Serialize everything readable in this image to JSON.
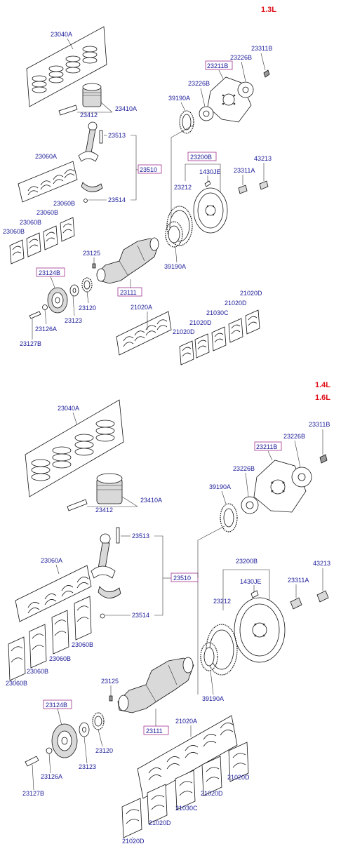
{
  "diagram": {
    "sections": [
      {
        "engine_labels": [
          "1.3L"
        ],
        "labels": {
          "rings": "23040A",
          "piston": "23410A",
          "pin": "23412",
          "rod": "23513",
          "rod_assy": "23510",
          "rod_nut": "23514",
          "rod_bearing_set": "23060A",
          "rod_bearing_b1": "23060B",
          "rod_bearing_b2": "23060B",
          "rod_bearing_b3": "23060B",
          "rod_bearing_b4": "23060B",
          "drive_plate": "23211B",
          "drive_bolt": "23311B",
          "adapter_plate": "23226B",
          "spacer": "23226B",
          "ring_gear_top": "39190A",
          "flywheel_assy": "23200B",
          "flywheel": "23212",
          "flywheel_pin": "1430JE",
          "flywheel_bolt_a": "23311A",
          "flywheel_bolt_b": "43213",
          "ring_gear_bottom": "39190A",
          "crank_key": "23125",
          "crankshaft": "23111",
          "damper": "23124B",
          "sprocket": "23120",
          "washer": "23123",
          "damper_bolt": "23127B",
          "hub": "23126A",
          "main_bearing_set": "21020A",
          "main_bearing_d1": "21020D",
          "main_bearing_d2": "21020D",
          "main_bearing_d3": "21020D",
          "main_bearing_d4": "21020D",
          "thrust_bearing": "21030C"
        }
      },
      {
        "engine_labels": [
          "1.4L",
          "1.6L"
        ],
        "labels": {
          "rings": "23040A",
          "piston": "23410A",
          "pin": "23412",
          "rod": "23513",
          "rod_assy": "23510",
          "rod_nut": "23514",
          "rod_bearing_set": "23060A",
          "rod_bearing_b1": "23060B",
          "rod_bearing_b2": "23060B",
          "rod_bearing_b3": "23060B",
          "rod_bearing_b4": "23060B",
          "drive_plate": "23211B",
          "drive_bolt": "23311B",
          "adapter_plate": "23226B",
          "spacer": "23226B",
          "ring_gear_top": "39190A",
          "flywheel_assy": "23200B",
          "flywheel": "23212",
          "flywheel_pin": "1430JE",
          "flywheel_bolt_a": "23311A",
          "flywheel_bolt_b": "43213",
          "ring_gear_bottom": "39190A",
          "crank_key": "23125",
          "crankshaft": "23111",
          "damper": "23124B",
          "sprocket": "23120",
          "washer": "23123",
          "damper_bolt": "23127B",
          "hub": "23126A",
          "main_bearing_set": "21020A",
          "main_bearing_d1": "21020D",
          "main_bearing_d2": "21020D",
          "main_bearing_d3": "21020D",
          "main_bearing_d4": "21020D",
          "thrust_bearing": "21030C"
        }
      }
    ]
  }
}
